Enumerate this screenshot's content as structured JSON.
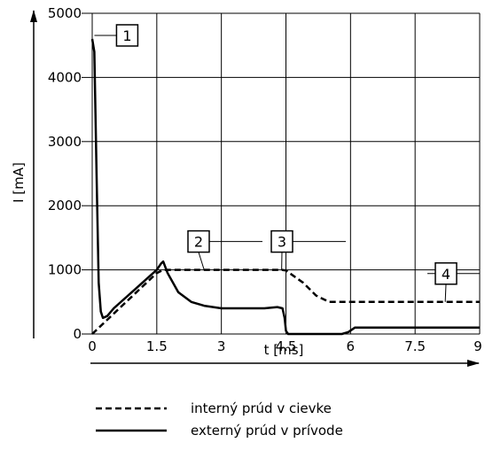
{
  "chart_data": {
    "type": "line",
    "xlabel": "t [ms]",
    "ylabel": "I [mA]",
    "xlim": [
      0,
      9
    ],
    "ylim": [
      0,
      5000
    ],
    "x_ticks": [
      "0",
      "1.5",
      "3",
      "4.5",
      "6",
      "7.5",
      "9"
    ],
    "y_ticks": [
      "0",
      "1000",
      "2000",
      "3000",
      "4000",
      "5000"
    ],
    "grid": true,
    "legend_position": "bottom",
    "series": [
      {
        "name": "interný prúd v cievke",
        "style": "dashed",
        "x": [
          0,
          1.5,
          1.65,
          4.4,
          4.5,
          4.9,
          5.2,
          5.5,
          9
        ],
        "y": [
          0,
          950,
          1000,
          1000,
          990,
          800,
          600,
          500,
          500
        ]
      },
      {
        "name": "externý prúd v prívode",
        "style": "solid",
        "x": [
          0,
          0.05,
          0.1,
          0.15,
          0.2,
          0.25,
          0.35,
          0.5,
          1.0,
          1.5,
          1.6,
          1.65,
          1.75,
          2.0,
          2.3,
          2.6,
          3.0,
          3.5,
          4.0,
          4.3,
          4.42,
          4.47,
          4.5,
          4.55,
          5.5,
          5.8,
          5.95,
          6.1,
          9
        ],
        "y": [
          4600,
          4400,
          2500,
          800,
          350,
          250,
          280,
          400,
          700,
          1000,
          1100,
          1130,
          950,
          650,
          500,
          440,
          400,
          400,
          400,
          420,
          400,
          250,
          50,
          0,
          0,
          0,
          30,
          100,
          100
        ]
      }
    ],
    "callouts": [
      {
        "label": "1",
        "x": 0.05,
        "y": 4600
      },
      {
        "label": "2",
        "x": 2.6,
        "y": 1000
      },
      {
        "label": "3",
        "x": 4.4,
        "y": 1000
      },
      {
        "label": "4",
        "x": 8.2,
        "y": 500
      }
    ]
  }
}
